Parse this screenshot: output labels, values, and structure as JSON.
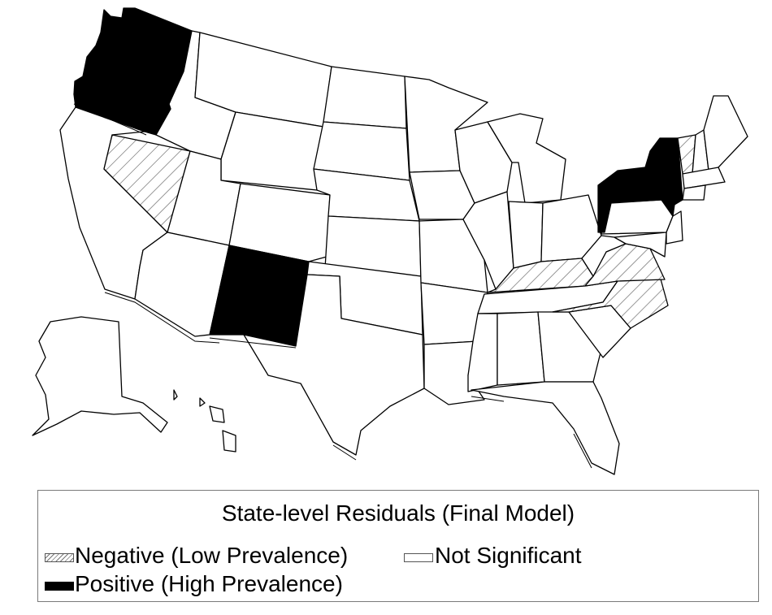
{
  "map": {
    "states": [
      {
        "id": "WA",
        "category": "positive"
      },
      {
        "id": "OR",
        "category": "positive"
      },
      {
        "id": "NM",
        "category": "positive"
      },
      {
        "id": "NY",
        "category": "positive"
      },
      {
        "id": "NV",
        "category": "negative"
      },
      {
        "id": "KY",
        "category": "negative"
      },
      {
        "id": "VA",
        "category": "negative"
      },
      {
        "id": "NC",
        "category": "negative"
      },
      {
        "id": "VT",
        "category": "negative"
      }
    ]
  },
  "legend": {
    "title": "State-level Residuals (Final Model)",
    "negative_label": "Negative (Low Prevalence)",
    "not_significant_label": "Not Significant",
    "positive_label": "Positive (High Prevalence)"
  },
  "colors": {
    "positive": "#000000",
    "not_significant": "#ffffff",
    "negative_hatch": "#777777"
  }
}
